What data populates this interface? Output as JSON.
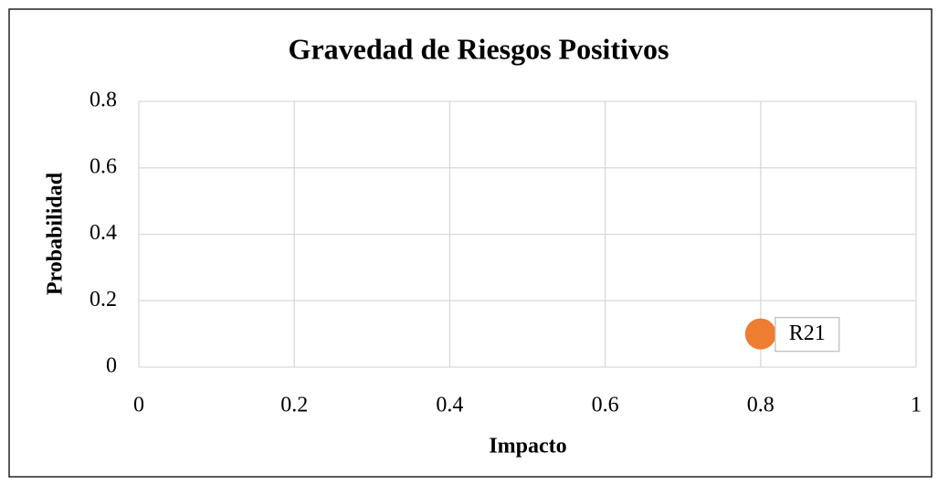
{
  "chart_data": {
    "type": "scatter",
    "title": "Gravedad de Riesgos Positivos",
    "x_label": "Impacto",
    "y_label": "Probabilidad",
    "x": [
      0.8
    ],
    "series": [
      {
        "color": "#ed7d31",
        "values": [
          0.1
        ],
        "point_labels": [
          "R21"
        ]
      }
    ],
    "xlim": [
      0,
      1
    ],
    "xticks": [
      0,
      0.2,
      0.4,
      0.6,
      0.8,
      1
    ],
    "ylim": [
      0,
      0.8
    ],
    "yticks": [
      0,
      0.2,
      0.4,
      0.6,
      0.8
    ],
    "grid": true
  }
}
